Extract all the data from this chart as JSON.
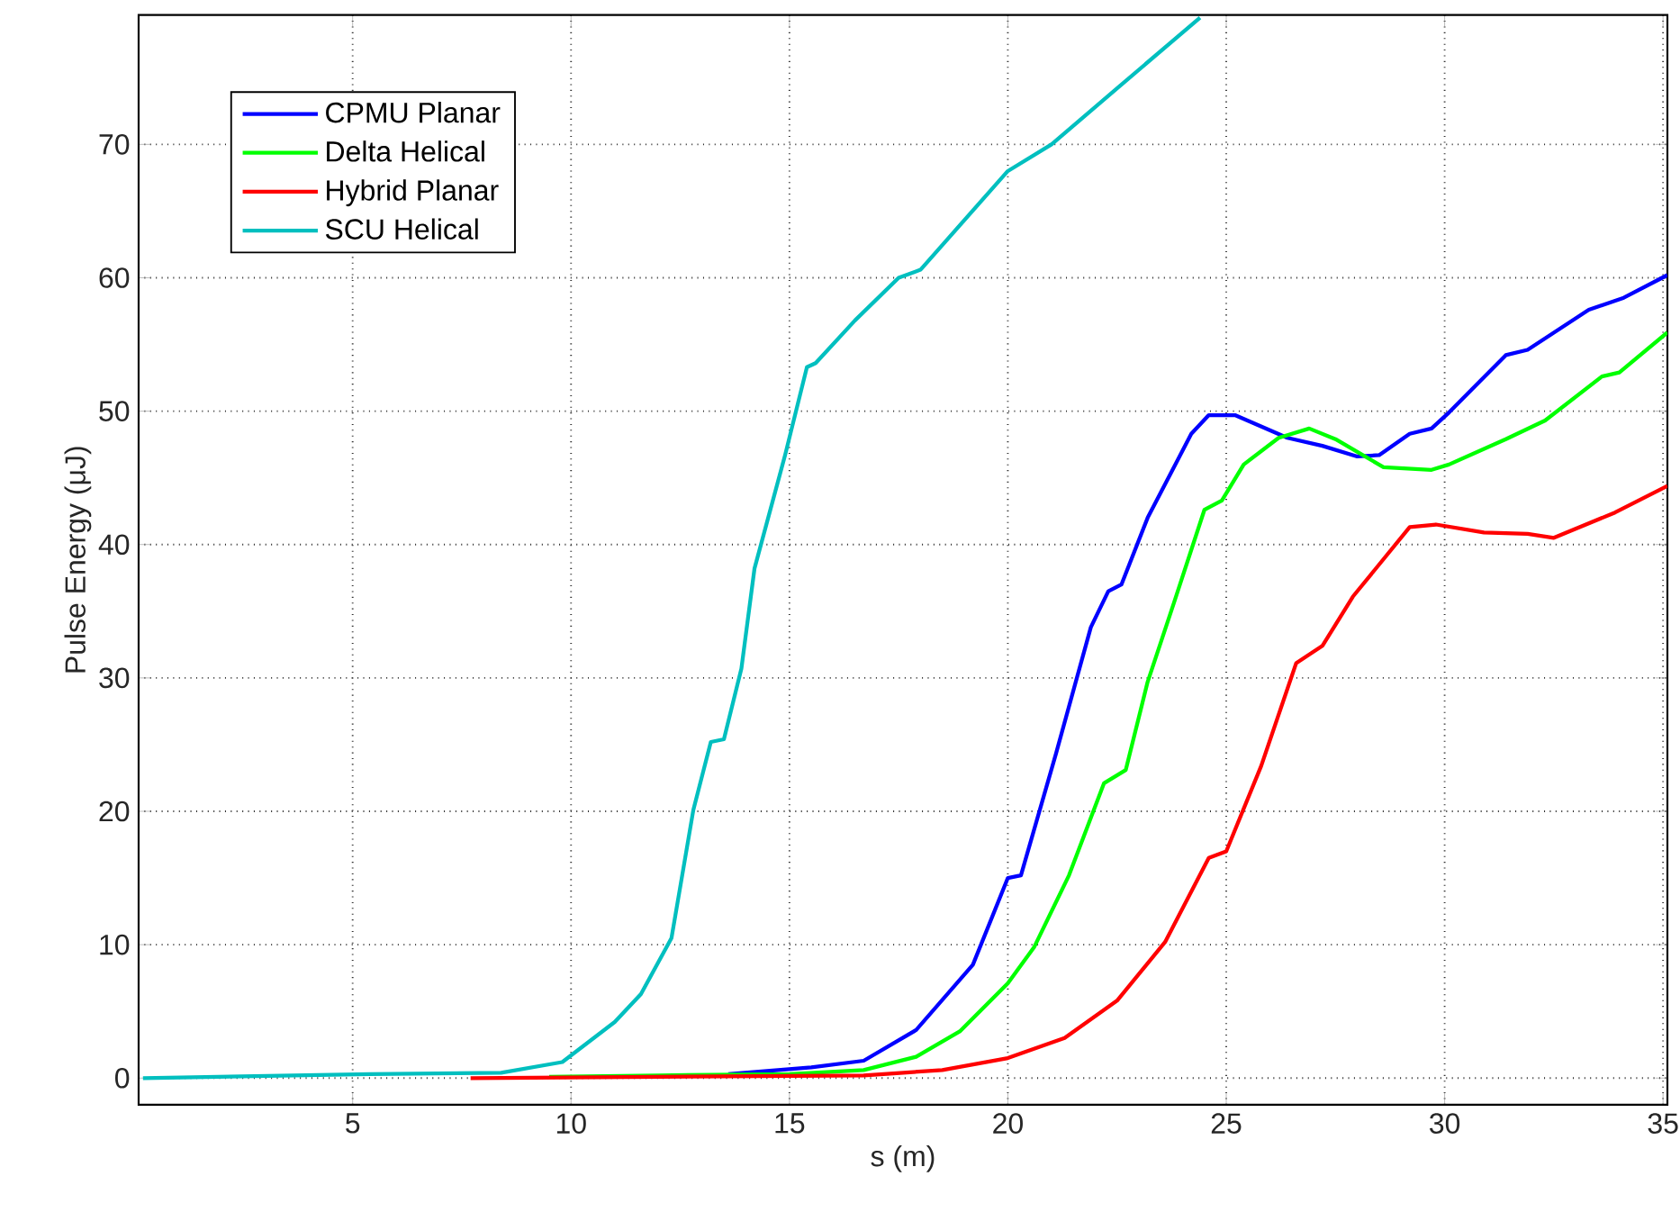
{
  "chart_data": {
    "type": "line",
    "xlabel": "s (m)",
    "ylabel": "Pulse Energy (μJ)",
    "xlim": [
      0.1,
      35.1
    ],
    "ylim": [
      -2,
      79.7
    ],
    "xticks": [
      5,
      10,
      15,
      20,
      25,
      30,
      35
    ],
    "yticks": [
      0,
      10,
      20,
      30,
      40,
      50,
      60,
      70
    ],
    "grid": true,
    "legend": "top left",
    "series": [
      {
        "name": "CPMU Planar",
        "color": "#0000ff",
        "x": [
          13.6,
          15.5,
          16.7,
          17.9,
          19.2,
          20.0,
          20.3,
          21.1,
          21.9,
          22.3,
          22.6,
          23.2,
          24.2,
          24.6,
          25.2,
          26.4,
          27.2,
          28.0,
          28.5,
          29.2,
          29.7,
          30.1,
          31.4,
          31.9,
          33.3,
          34.1,
          35.1
        ],
        "values": [
          0.3,
          0.8,
          1.3,
          3.6,
          8.5,
          15,
          15.2,
          24.3,
          33.8,
          36.5,
          37,
          42,
          48.3,
          49.7,
          49.7,
          48,
          47.4,
          46.6,
          46.7,
          48.3,
          48.7,
          49.9,
          54.2,
          54.6,
          57.6,
          58.5,
          60.2
        ]
      },
      {
        "name": "Delta Helical",
        "color": "#00ff00",
        "x": [
          9.5,
          12,
          15,
          16.7,
          17.9,
          18.9,
          20.0,
          20.6,
          21.4,
          22.2,
          22.7,
          23.2,
          23.8,
          24.5,
          24.9,
          25.4,
          26.2,
          26.9,
          27.5,
          28.6,
          29.7,
          30.1,
          31.4,
          32.3,
          33.6,
          34.0,
          35.1
        ],
        "values": [
          0.1,
          0.2,
          0.3,
          0.6,
          1.6,
          3.5,
          7.1,
          9.8,
          15.2,
          22.1,
          23.1,
          29.7,
          35.6,
          42.6,
          43.3,
          46,
          48,
          48.7,
          47.9,
          45.8,
          45.6,
          46,
          47.9,
          49.3,
          52.6,
          52.9,
          55.9
        ]
      },
      {
        "name": "Hybrid Planar",
        "color": "#ff0000",
        "x": [
          7.7,
          12,
          16.7,
          18.5,
          20.0,
          21.3,
          22.5,
          23.6,
          24.6,
          25.0,
          25.8,
          26.6,
          27.2,
          27.9,
          29.2,
          29.8,
          30.9,
          31.9,
          32.5,
          33.9,
          35.1
        ],
        "values": [
          0,
          0.1,
          0.2,
          0.6,
          1.5,
          3,
          5.8,
          10.2,
          16.5,
          17,
          23.4,
          31.1,
          32.4,
          36.1,
          41.3,
          41.5,
          40.9,
          40.8,
          40.5,
          42.4,
          44.4
        ]
      },
      {
        "name": "SCU Helical",
        "color": "#00bfbf",
        "x": [
          0.2,
          5.4,
          8.4,
          9.8,
          11.0,
          11.6,
          12.3,
          12.8,
          13.2,
          13.5,
          13.9,
          14.2,
          14.9,
          15.4,
          15.6,
          16.5,
          17.5,
          18.0,
          20.0,
          21.0,
          22.5,
          24.4
        ],
        "values": [
          0,
          0.3,
          0.4,
          1.2,
          4.2,
          6.3,
          10.5,
          20.1,
          25.2,
          25.4,
          30.7,
          38.2,
          46.7,
          53.3,
          53.6,
          56.8,
          60,
          60.6,
          68,
          70,
          74.2,
          79.5
        ]
      }
    ]
  }
}
